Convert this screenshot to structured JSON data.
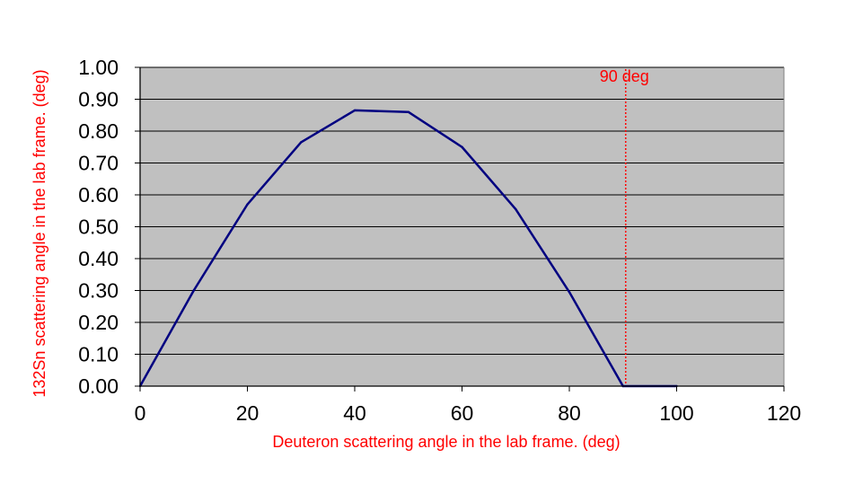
{
  "chart_data": {
    "type": "line",
    "title": "",
    "xlabel": "Deuteron scattering angle in the lab frame. (deg)",
    "ylabel": "132Sn scattering angle in the lab frame. (deg)",
    "xlim": [
      0,
      120
    ],
    "ylim": [
      0,
      1.0
    ],
    "x_ticks": [
      0,
      20,
      40,
      60,
      80,
      100,
      120
    ],
    "x_tick_labels": [
      "0",
      "20",
      "40",
      "60",
      "80",
      "100",
      "120"
    ],
    "y_ticks": [
      0,
      0.1,
      0.2,
      0.3,
      0.4,
      0.5,
      0.6,
      0.7,
      0.8,
      0.9,
      1.0
    ],
    "y_tick_labels": [
      "0.00",
      "0.10",
      "0.20",
      "0.30",
      "0.40",
      "0.50",
      "0.60",
      "0.70",
      "0.80",
      "0.90",
      "1.00"
    ],
    "grid": "horizontal",
    "legend": "none",
    "series": [
      {
        "x": [
          0,
          10,
          20,
          30,
          40,
          50,
          60,
          70,
          80,
          90,
          100
        ],
        "y": [
          0.0,
          0.3,
          0.57,
          0.765,
          0.865,
          0.86,
          0.75,
          0.555,
          0.295,
          0.0,
          0.0
        ]
      }
    ],
    "annotations": [
      {
        "text": "90 deg",
        "x": 90.5,
        "type": "vertical-dotted-line"
      }
    ],
    "colors": {
      "plot_background": "#c0c0c0",
      "line": "#000080",
      "annotation": "#ff0000",
      "axis_title": "#ff0000",
      "gridline": "#000000"
    }
  }
}
